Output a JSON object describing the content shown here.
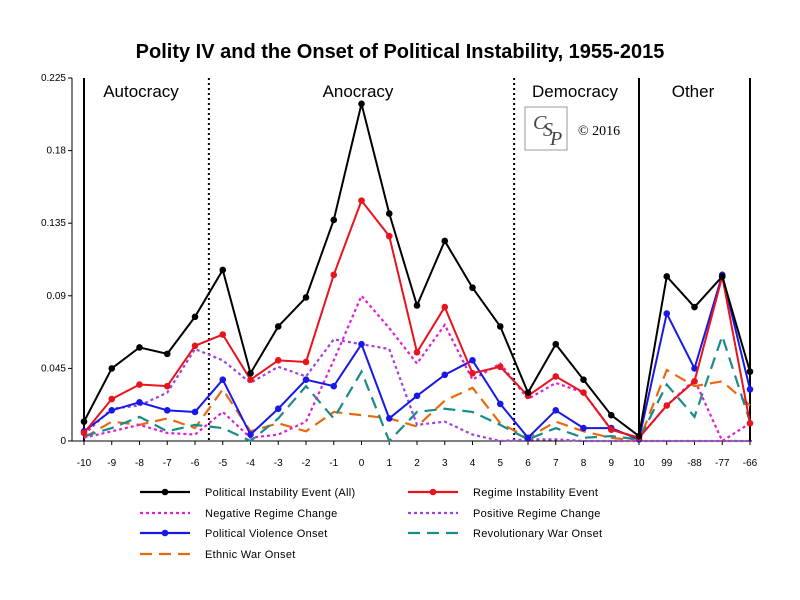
{
  "chart_data": {
    "type": "line",
    "title": "Polity IV and the Onset of Political Instability, 1955-2015",
    "xlabel": "",
    "ylabel": "",
    "categories": [
      "-10",
      "-9",
      "-8",
      "-7",
      "-6",
      "-5",
      "-4",
      "-3",
      "-2",
      "-1",
      "0",
      "1",
      "2",
      "3",
      "4",
      "5",
      "6",
      "7",
      "8",
      "9",
      "10",
      "99",
      "-88",
      "-77",
      "-66"
    ],
    "yticks": [
      "0",
      "0.045",
      "0.09",
      "0.135",
      "0.18",
      "0.225"
    ],
    "ylim": [
      0,
      0.225
    ],
    "regions": [
      "Autocracy",
      "Anocracy",
      "Democracy",
      "Other"
    ],
    "copyright": "© 2016",
    "series": [
      {
        "name": "Political Instability Event (All)",
        "color": "#000000",
        "style": "solid",
        "markers": true,
        "values": [
          0.012,
          0.045,
          0.058,
          0.054,
          0.077,
          0.106,
          0.042,
          0.071,
          0.089,
          0.137,
          0.209,
          0.141,
          0.084,
          0.124,
          0.095,
          0.071,
          0.03,
          0.06,
          0.038,
          0.016,
          0.003,
          0.102,
          0.083,
          0.102,
          0.043
        ]
      },
      {
        "name": "Regime Instability Event",
        "color": "#e8141c",
        "style": "solid",
        "markers": true,
        "values": [
          0.005,
          0.026,
          0.035,
          0.034,
          0.059,
          0.066,
          0.038,
          0.05,
          0.049,
          0.103,
          0.149,
          0.127,
          0.055,
          0.083,
          0.042,
          0.046,
          0.028,
          0.04,
          0.03,
          0.007,
          0.002,
          0.022,
          0.037,
          0.102,
          0.011
        ]
      },
      {
        "name": "Negative Regime Change",
        "color": "#e020d0",
        "style": "dotted",
        "markers": false,
        "values": [
          0.002,
          0.006,
          0.01,
          0.005,
          0.004,
          0.018,
          0.002,
          0.004,
          0.012,
          0.05,
          0.09,
          0.07,
          0.048,
          0.072,
          0.038,
          0.048,
          0.026,
          0.036,
          0.03,
          0.007,
          0.002,
          0.022,
          0.038,
          0.0,
          0.011
        ]
      },
      {
        "name": "Positive Regime Change",
        "color": "#a040e0",
        "style": "dotted",
        "markers": false,
        "values": [
          0.004,
          0.02,
          0.022,
          0.03,
          0.057,
          0.05,
          0.036,
          0.046,
          0.04,
          0.063,
          0.06,
          0.057,
          0.01,
          0.012,
          0.004,
          0.0,
          0.001,
          0.001,
          0.0,
          0.0,
          0.0,
          0.0,
          0.0,
          0.0,
          0.0
        ]
      },
      {
        "name": "Political Violence Onset",
        "color": "#1818e8",
        "style": "solid",
        "markers": true,
        "values": [
          0.006,
          0.019,
          0.024,
          0.019,
          0.018,
          0.038,
          0.004,
          0.02,
          0.038,
          0.034,
          0.06,
          0.014,
          0.028,
          0.041,
          0.05,
          0.023,
          0.002,
          0.019,
          0.008,
          0.008,
          0.001,
          0.079,
          0.045,
          0.103,
          0.032
        ]
      },
      {
        "name": "Revolutionary War Onset",
        "color": "#1a8a8a",
        "style": "dashed",
        "markers": false,
        "values": [
          0.003,
          0.008,
          0.015,
          0.006,
          0.01,
          0.008,
          0.0,
          0.014,
          0.034,
          0.014,
          0.043,
          0.0,
          0.018,
          0.02,
          0.018,
          0.01,
          0.001,
          0.008,
          0.002,
          0.003,
          0.001,
          0.035,
          0.015,
          0.065,
          0.012
        ]
      },
      {
        "name": "Ethnic War Onset",
        "color": "#e86a10",
        "style": "dashed",
        "markers": false,
        "values": [
          0.002,
          0.012,
          0.01,
          0.014,
          0.008,
          0.032,
          0.006,
          0.011,
          0.006,
          0.018,
          0.016,
          0.014,
          0.009,
          0.025,
          0.033,
          0.011,
          0.002,
          0.012,
          0.006,
          0.002,
          0.0,
          0.044,
          0.034,
          0.037,
          0.022
        ]
      }
    ]
  }
}
